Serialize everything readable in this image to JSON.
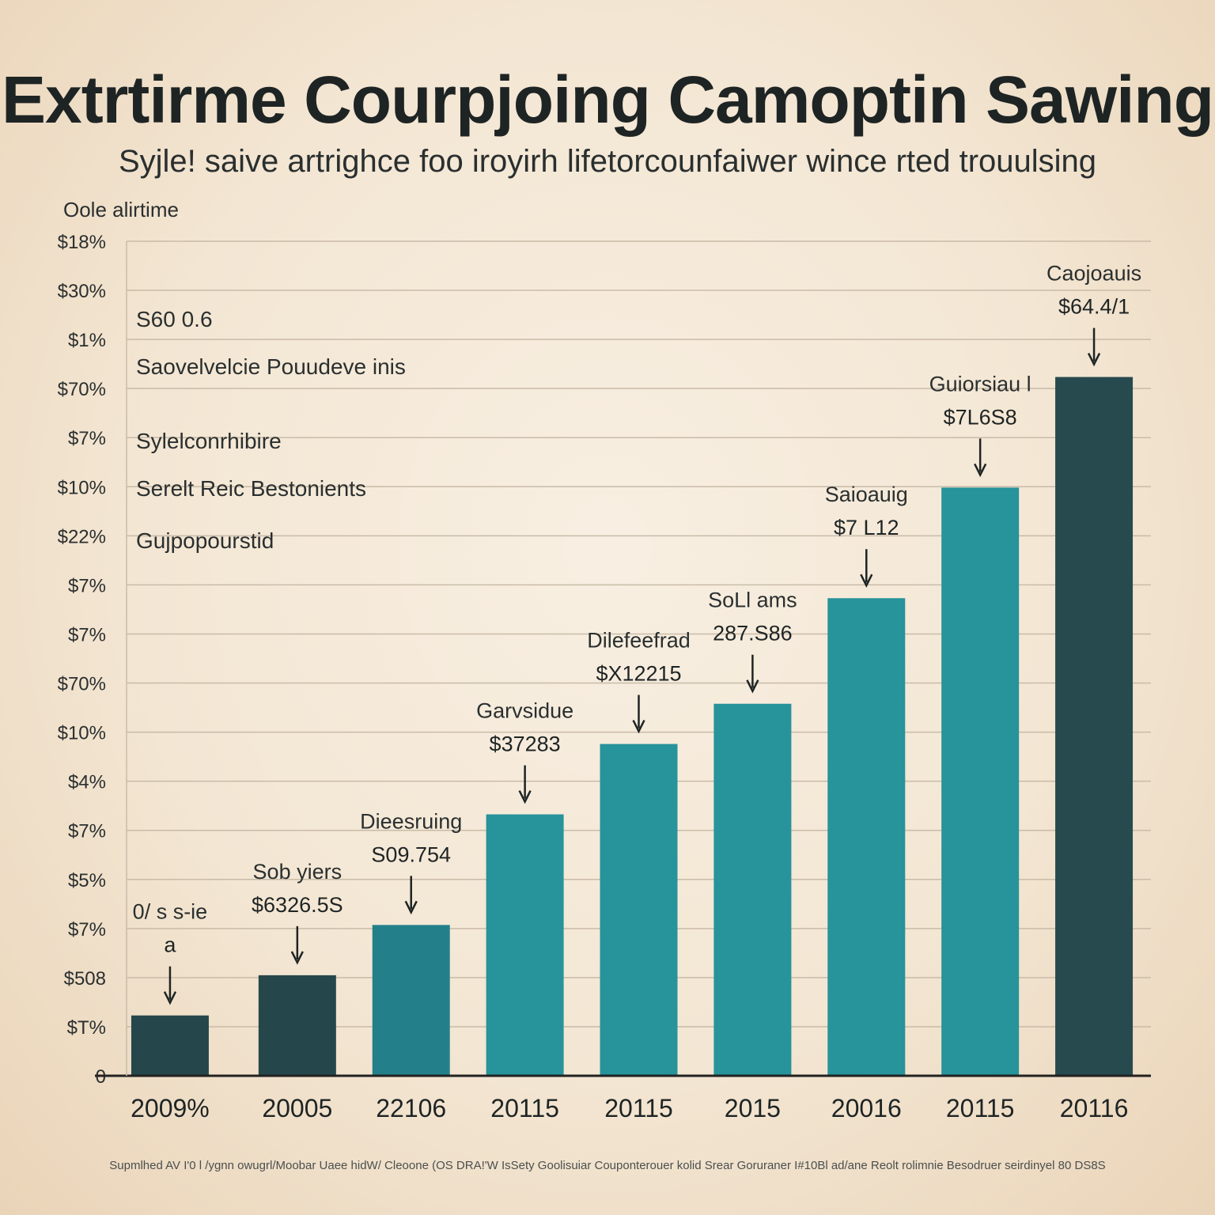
{
  "chart_data": {
    "type": "bar",
    "title": "Extrtirme Courpjoing Camoptin Sawing",
    "subtitle": "Syjle! saive artrighce foo iroyirh lifetorcounfaiwer wince rted trouulsing",
    "ylabel": "Oole alirtime",
    "xlabel": "",
    "y_tick_labels": [
      "0",
      "$T%",
      "$508",
      "$7%",
      "$5%",
      "$7%",
      "$4%",
      "$10%",
      "$70%",
      "$7%",
      "$7%",
      "$22%",
      "$10%",
      "$7%",
      "$70%",
      "$1%",
      "$30%",
      "$18%"
    ],
    "categories": [
      "2009%",
      "20005",
      "22106",
      "20115",
      "20115",
      "2015",
      "20016",
      "20115",
      "20116"
    ],
    "values": [
      6,
      10,
      15,
      26,
      33,
      37,
      47.5,
      58.5,
      69.5
    ],
    "ylim": [
      0,
      83
    ],
    "bar_colors": [
      "#25474c",
      "#25474c",
      "#23808a",
      "#27939a",
      "#27939a",
      "#27939a",
      "#27939a",
      "#27939a",
      "#274a4f"
    ],
    "annotations": [
      {
        "name": "0/ s s-ie",
        "value": "a"
      },
      {
        "name": "Sob yiers",
        "value": "$6326.5S"
      },
      {
        "name": "Dieesruing",
        "value": "S09.754"
      },
      {
        "name": "Garvsidue",
        "value": "$37283"
      },
      {
        "name": "Dilefeefrad",
        "value": "$X12215"
      },
      {
        "name": "SoLl ams",
        "value": "287.S86"
      },
      {
        "name": "Saioauig",
        "value": "$7 L12"
      },
      {
        "name": "Guiorsiau l",
        "value": "$7L6S8"
      },
      {
        "name": "Caojoauis",
        "value": "$64.4/1"
      }
    ],
    "grid": true,
    "legend": "none"
  },
  "notes": [
    "S60 0.6",
    "Saovelvelcie Pouudeve inis",
    "Sylelconrhibire",
    "Serelt Reic Bestonients",
    "Gujpopourstid"
  ],
  "footer": "Supmlhed AV I'0 l /ygnn owugrl/Moobar Uaee hidW/ Cleoone (OS DRA!'W IsSety Goolisuiar Couponterouer kolid Srear Goruraner I#10Bl ad/ane Reolt rolimnie Besodruer seirdinyel 80 DS8S",
  "colors": {
    "bar_dark": "#25474c",
    "bar_teal": "#27939a",
    "grid": "#c9bba8",
    "axis": "#222222"
  }
}
